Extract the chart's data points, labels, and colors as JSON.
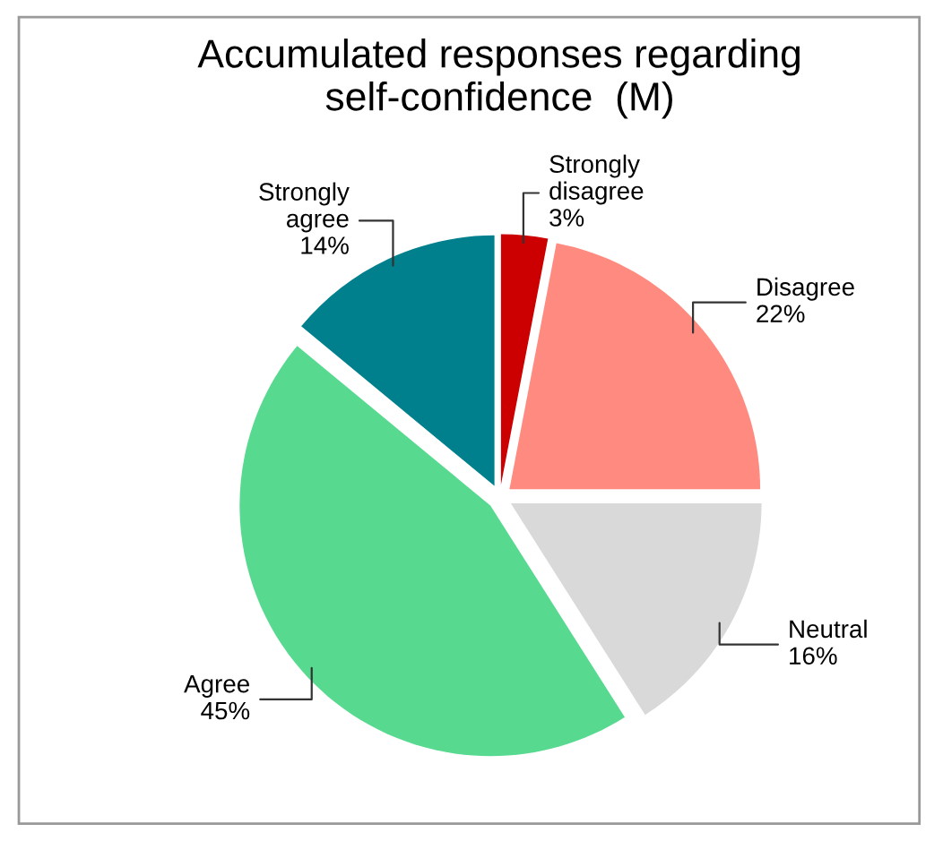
{
  "chart_data": {
    "type": "pie",
    "title": "Accumulated responses regarding\nself-confidence  (M)",
    "categories": [
      "Strongly\ndisagree",
      "Disagree",
      "Neutral",
      "Agree",
      "Strongly\nagree"
    ],
    "values": [
      3,
      22,
      16,
      45,
      14
    ],
    "value_labels": [
      "3%",
      "22%",
      "16%",
      "45%",
      "14%"
    ],
    "colors": [
      "#cc0000",
      "#ff8a80",
      "#d9d9d9",
      "#57d98f",
      "#00808c"
    ],
    "legend": false
  }
}
